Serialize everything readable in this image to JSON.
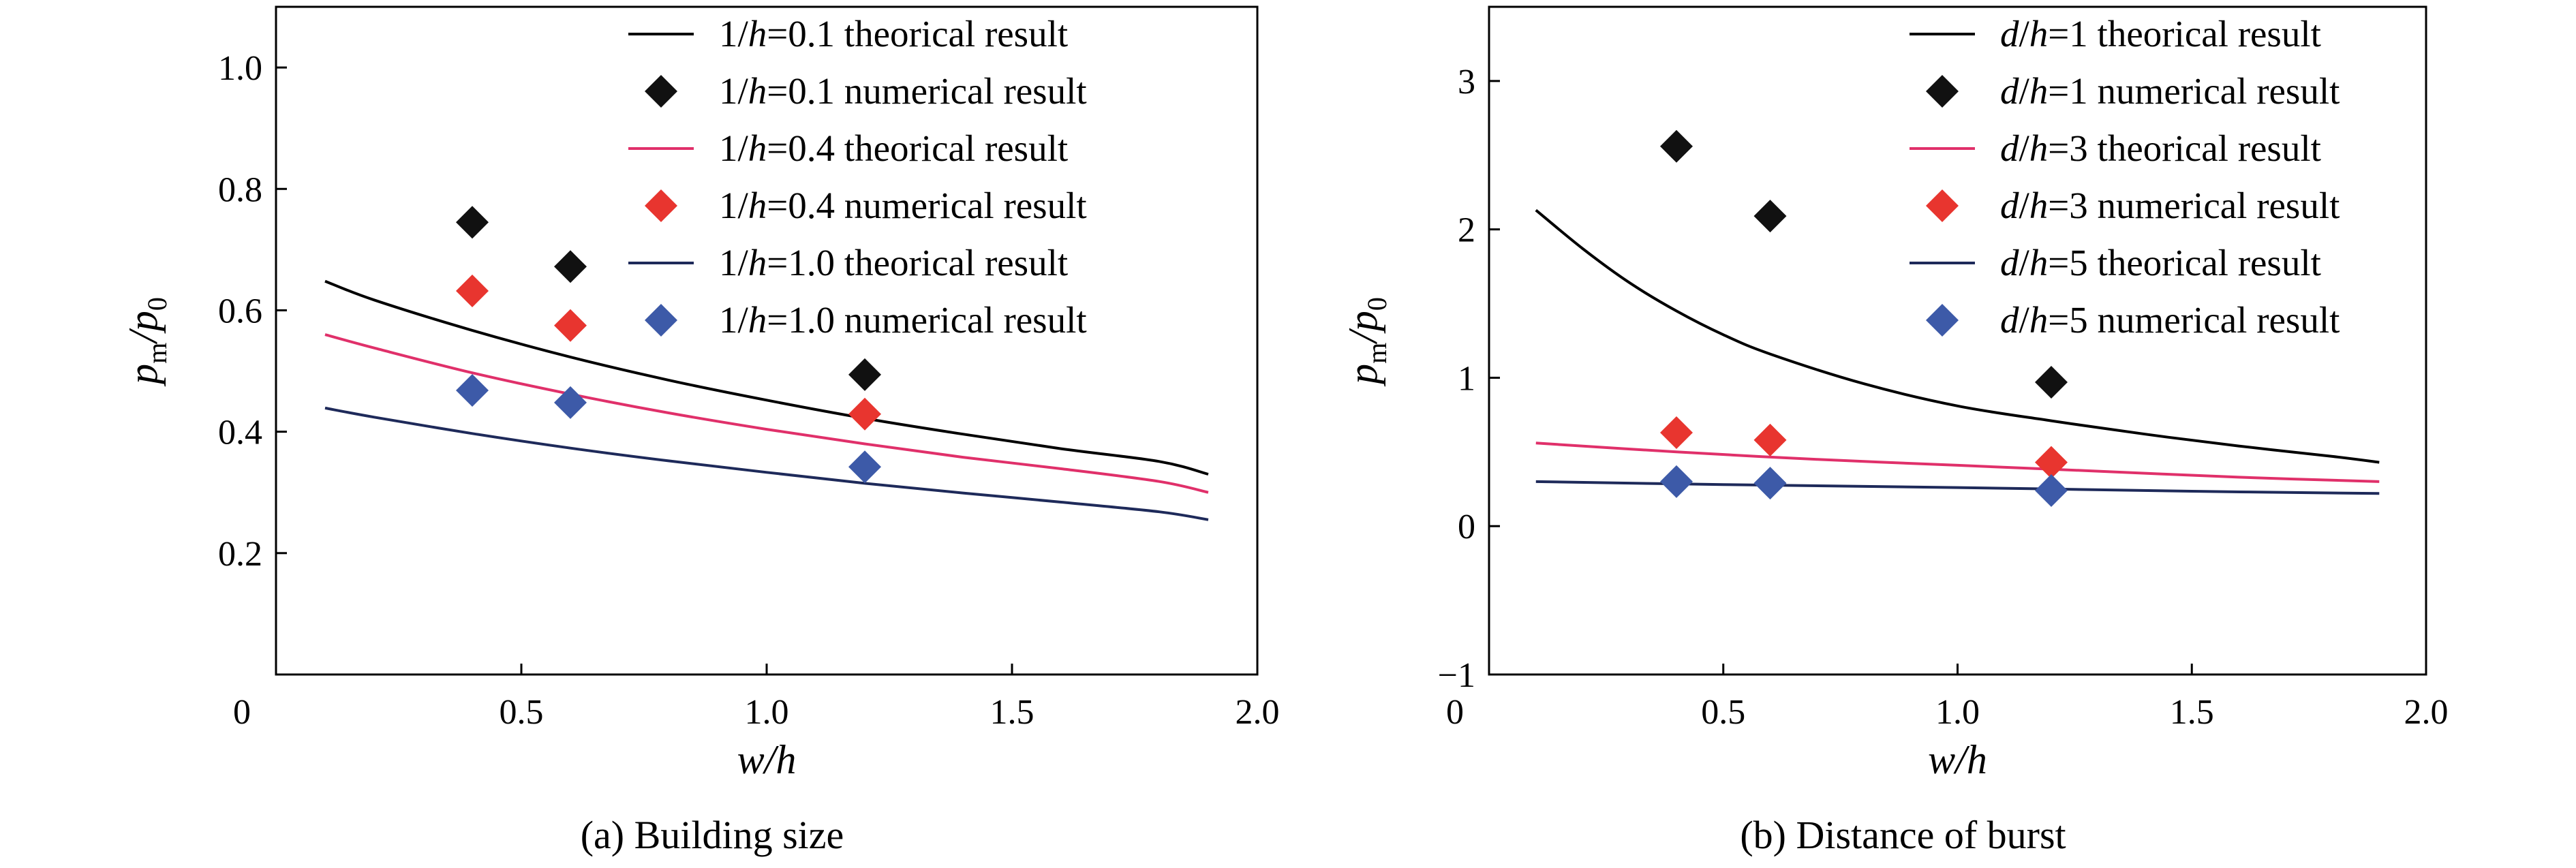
{
  "chart_data": [
    {
      "type": "scatter",
      "caption": "(a) Building size",
      "xlabel": "w/h",
      "ylabel": "pm/p0",
      "xlim": [
        0,
        2.0
      ],
      "ylim": [
        0,
        1.1
      ],
      "xticks": [
        "0",
        "0.5",
        "1.0",
        "1.5",
        "2.0"
      ],
      "xtick_values": [
        0,
        0.5,
        1.0,
        1.5,
        2.0
      ],
      "yticks": [
        "0.2",
        "0.4",
        "0.6",
        "0.8",
        "1.0"
      ],
      "ytick_values": [
        0.2,
        0.4,
        0.6,
        0.8,
        1.0
      ],
      "legend_position": "top-right",
      "series": [
        {
          "name": "1/h=0.1 theorical result",
          "kind": "line",
          "color": "#000000",
          "x": [
            0.1,
            0.2,
            0.4,
            0.6,
            0.8,
            1.0,
            1.2,
            1.4,
            1.6,
            1.8,
            1.9
          ],
          "y": [
            0.648,
            0.617,
            0.567,
            0.523,
            0.485,
            0.452,
            0.422,
            0.396,
            0.372,
            0.351,
            0.33
          ]
        },
        {
          "name": "1/h=0.1 numerical result",
          "kind": "marker",
          "color": "#111111",
          "x": [
            0.4,
            0.6,
            1.2
          ],
          "y": [
            0.745,
            0.672,
            0.494
          ]
        },
        {
          "name": "1/h=0.4 theorical result",
          "kind": "line",
          "color": "#e0306a",
          "x": [
            0.1,
            0.2,
            0.4,
            0.6,
            0.8,
            1.0,
            1.2,
            1.4,
            1.6,
            1.8,
            1.9
          ],
          "y": [
            0.56,
            0.538,
            0.497,
            0.462,
            0.431,
            0.404,
            0.38,
            0.358,
            0.339,
            0.318,
            0.3
          ]
        },
        {
          "name": "1/h=0.4 numerical result",
          "kind": "marker",
          "color": "#e8352f",
          "x": [
            0.4,
            0.6,
            1.2
          ],
          "y": [
            0.632,
            0.575,
            0.429
          ]
        },
        {
          "name": "1/h=1.0 theorical result",
          "kind": "line",
          "color": "#1e2a5a",
          "x": [
            0.1,
            0.2,
            0.4,
            0.6,
            0.8,
            1.0,
            1.2,
            1.4,
            1.6,
            1.8,
            1.9
          ],
          "y": [
            0.439,
            0.424,
            0.397,
            0.373,
            0.352,
            0.333,
            0.315,
            0.299,
            0.284,
            0.268,
            0.255
          ]
        },
        {
          "name": "1/h=1.0 numerical result",
          "kind": "marker",
          "color": "#3d5aa8",
          "x": [
            0.4,
            0.6,
            1.2
          ],
          "y": [
            0.468,
            0.448,
            0.342
          ]
        }
      ]
    },
    {
      "type": "scatter",
      "caption": "(b) Distance of burst",
      "xlabel": "w/h",
      "ylabel": "pm/p0",
      "xlim": [
        0,
        2.0
      ],
      "ylim": [
        -1,
        3.5
      ],
      "xticks": [
        "0",
        "0.5",
        "1.0",
        "1.5",
        "2.0"
      ],
      "xtick_values": [
        0,
        0.5,
        1.0,
        1.5,
        2.0
      ],
      "yticks": [
        "−1",
        "0",
        "1",
        "2",
        "3"
      ],
      "ytick_values": [
        -1,
        0,
        1,
        2,
        3
      ],
      "legend_position": "top-right",
      "series": [
        {
          "name": "d/h=1 theorical result",
          "kind": "line",
          "color": "#000000",
          "x": [
            0.1,
            0.2,
            0.3,
            0.4,
            0.5,
            0.6,
            0.8,
            1.0,
            1.2,
            1.4,
            1.6,
            1.8,
            1.9
          ],
          "y": [
            2.13,
            1.87,
            1.64,
            1.45,
            1.29,
            1.16,
            0.96,
            0.81,
            0.71,
            0.62,
            0.54,
            0.47,
            0.43
          ]
        },
        {
          "name": "d/h=1 numerical result",
          "kind": "marker",
          "color": "#111111",
          "x": [
            0.4,
            0.6,
            1.2
          ],
          "y": [
            2.56,
            2.09,
            0.97
          ]
        },
        {
          "name": "d/h=3 theorical result",
          "kind": "line",
          "color": "#e0306a",
          "x": [
            0.1,
            0.4,
            0.7,
            1.0,
            1.3,
            1.6,
            1.9
          ],
          "y": [
            0.56,
            0.5,
            0.45,
            0.41,
            0.37,
            0.33,
            0.3
          ]
        },
        {
          "name": "d/h=3 numerical result",
          "kind": "marker",
          "color": "#e8352f",
          "x": [
            0.4,
            0.6,
            1.2
          ],
          "y": [
            0.63,
            0.58,
            0.43
          ]
        },
        {
          "name": "d/h=5 theorical result",
          "kind": "line",
          "color": "#1e2a5a",
          "x": [
            0.1,
            0.5,
            1.0,
            1.5,
            1.9
          ],
          "y": [
            0.3,
            0.28,
            0.26,
            0.235,
            0.22
          ]
        },
        {
          "name": "d/h=5 numerical result",
          "kind": "marker",
          "color": "#3d5aa8",
          "x": [
            0.4,
            0.6,
            1.2
          ],
          "y": [
            0.3,
            0.29,
            0.24
          ]
        }
      ]
    }
  ]
}
